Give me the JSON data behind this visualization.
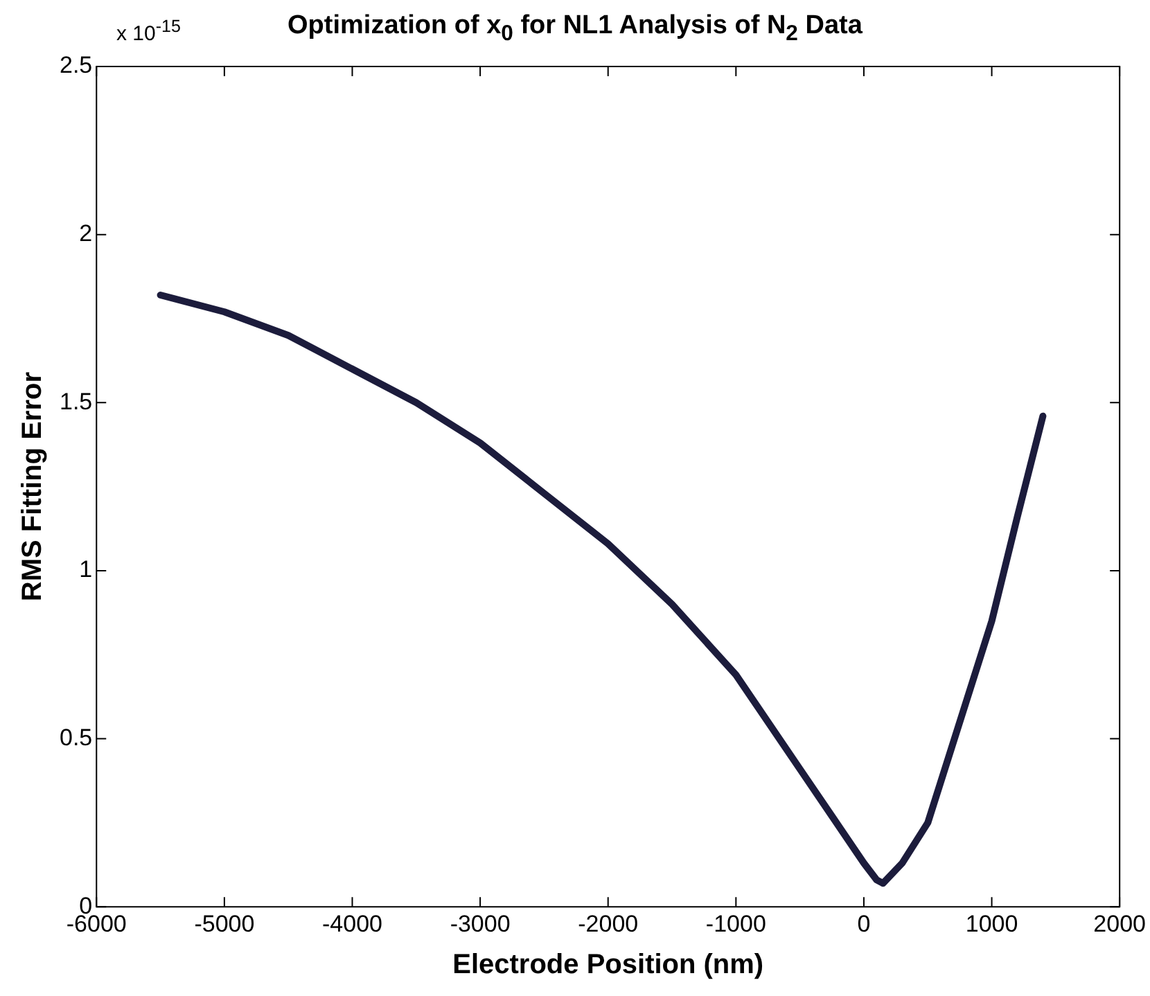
{
  "chart_data": {
    "type": "line",
    "title": "Optimization of x$_{0}$ for NL1 Analysis of N$_{2}$ Data",
    "xlabel": "Electrode Position (nm)",
    "ylabel": "RMS Fitting Error",
    "annotations": [
      "x 10$^{-15}$"
    ],
    "x": [
      -5500,
      -5000,
      -4500,
      -4000,
      -3500,
      -3000,
      -2500,
      -2000,
      -1500,
      -1000,
      -500,
      -250,
      0,
      100,
      150,
      300,
      500,
      1000,
      1200,
      1400
    ],
    "series": [
      {
        "color": "#1c1c3c",
        "values": [
          1.82,
          1.77,
          1.7,
          1.6,
          1.5,
          1.38,
          1.23,
          1.08,
          0.9,
          0.69,
          0.41,
          0.27,
          0.13,
          0.08,
          0.07,
          0.13,
          0.25,
          0.85,
          1.16,
          1.46
        ]
      }
    ],
    "xlim": [
      -6000,
      2000
    ],
    "xticks": [
      -6000,
      -5000,
      -4000,
      -3000,
      -2000,
      -1000,
      0,
      1000,
      2000
    ],
    "ylim": [
      0,
      2.5
    ],
    "yticks": [
      0,
      0.5,
      1,
      1.5,
      2,
      2.5
    ],
    "grid": false,
    "legend": false,
    "marker": "none",
    "line_style": "solid"
  }
}
